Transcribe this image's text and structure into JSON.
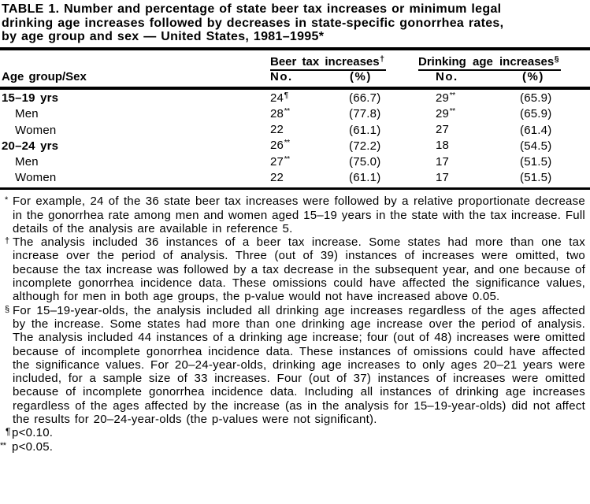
{
  "title": "TABLE 1. Number and percentage of state beer tax increases or minimum legal\ndrinking age increases followed by decreases in state-specific gonorrhea rates,\nby age group and sex — United States, 1981–1995*",
  "table": {
    "row_header": "Age group/Sex",
    "group1_label": "Beer tax increases",
    "group1_marker": "†",
    "group2_label": "Drinking age increases",
    "group2_marker": "§",
    "sub_no": "No.",
    "sub_pct": "(%)",
    "rows": [
      {
        "label": "15–19 yrs",
        "beer_no": "24",
        "beer_no_sup": "¶",
        "beer_pct": "(66.7)",
        "drink_no": "29",
        "drink_no_sup": "**",
        "drink_pct": "(65.9)"
      },
      {
        "label": "Men",
        "beer_no": "28",
        "beer_no_sup": "**",
        "beer_pct": "(77.8)",
        "drink_no": "29",
        "drink_no_sup": "**",
        "drink_pct": "(65.9)"
      },
      {
        "label": "Women",
        "beer_no": "22",
        "beer_no_sup": "",
        "beer_pct": "(61.1)",
        "drink_no": "27",
        "drink_no_sup": "",
        "drink_pct": "(61.4)"
      },
      {
        "label": "20–24 yrs",
        "beer_no": "26",
        "beer_no_sup": "**",
        "beer_pct": "(72.2)",
        "drink_no": "18",
        "drink_no_sup": "",
        "drink_pct": "(54.5)"
      },
      {
        "label": "Men",
        "beer_no": "27",
        "beer_no_sup": "**",
        "beer_pct": "(75.0)",
        "drink_no": "17",
        "drink_no_sup": "",
        "drink_pct": "(51.5)"
      },
      {
        "label": "Women",
        "beer_no": "22",
        "beer_no_sup": "",
        "beer_pct": "(61.1)",
        "drink_no": "17",
        "drink_no_sup": "",
        "drink_pct": "(51.5)"
      }
    ]
  },
  "footnotes": [
    {
      "marker": "*",
      "text": "For example, 24 of the 36 state beer tax increases were followed by a relative proportionate decrease in the gonorrhea rate among men and women aged 15–19 years in the state with the tax increase. Full details of the analysis are available in reference 5."
    },
    {
      "marker": "†",
      "text": "The analysis included 36 instances of a beer tax increase. Some states had more than one tax increase over the period of analysis. Three (out of 39) instances of increases were omitted, two because the tax increase was followed by a tax decrease in the subsequent year, and one because of incomplete gonorrhea incidence data. These omissions could have affected the significance values, although for men in both age groups, the p-value would not have increased above 0.05."
    },
    {
      "marker": "§",
      "text": "For 15–19-year-olds, the analysis included all drinking age increases regardless of the ages affected by the increase. Some states had more than one drinking age increase over the period of analysis. The analysis included 44 instances of a drinking age increase; four (out of 48) increases were omitted because of incomplete gonorrhea incidence data. These instances of omissions could have affected the significance values. For 20–24-year-olds, drinking age increases to only ages 20–21 years were included, for a sample size of 33 increases. Four (out of 37) instances of increases were omitted because of incomplete gonorrhea incidence data. Including all instances of drinking age increases regardless of the ages affected by the increase (as in the analysis for 15–19-year-olds) did not affect the results for 20–24-year-olds (the p-values were not significant)."
    },
    {
      "marker": "¶",
      "text": "p<0.10."
    },
    {
      "marker": "**",
      "text": "p<0.05."
    }
  ]
}
